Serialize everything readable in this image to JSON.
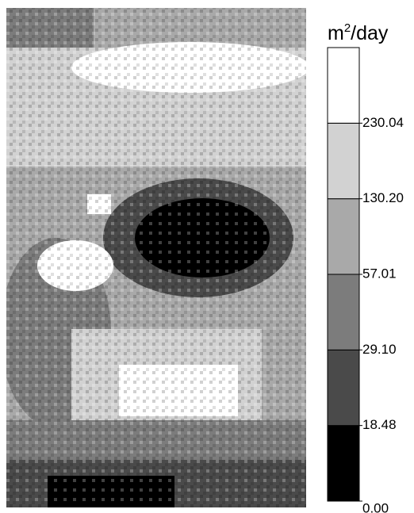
{
  "legend": {
    "unit": {
      "base": "m",
      "superscript": "2",
      "rest": "/day"
    },
    "labels": [
      "0.00",
      "18.48",
      "29.10",
      "57.01",
      "130.20",
      "230.04",
      null
    ],
    "colors": [
      "#000000",
      "#4a4a4a",
      "#7c7c7c",
      "#a9a9a9",
      "#d2d2d2",
      "#ffffff"
    ]
  }
}
